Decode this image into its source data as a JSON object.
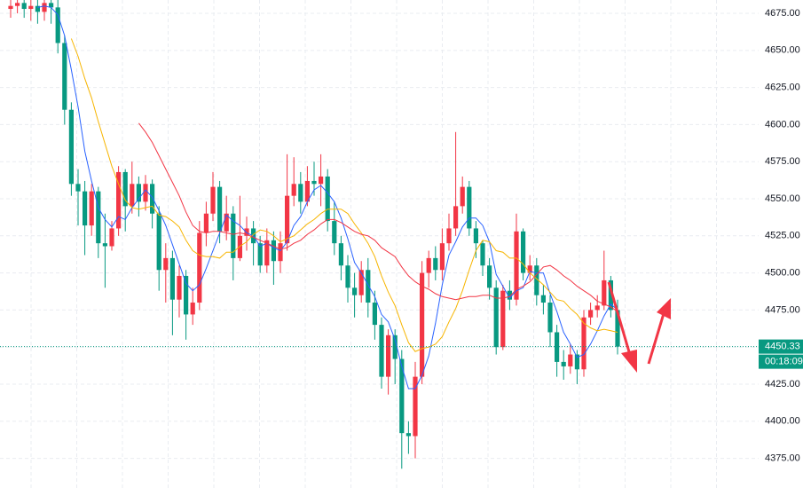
{
  "chart_data": {
    "type": "candlestick",
    "open": [
      4678,
      4680,
      4682,
      4678,
      4680,
      4676,
      4682,
      4679,
      4655,
      4610,
      4560,
      4555,
      4532,
      4555,
      4520,
      4518,
      4530,
      4568,
      4545,
      4560,
      4548,
      4560,
      4540,
      4502,
      4510,
      4482,
      4498,
      4472,
      4480,
      4527,
      4540,
      4558,
      4528,
      4540,
      4510,
      4525,
      4530,
      4520,
      4505,
      4522,
      4508,
      4520,
      4552,
      4560,
      4548,
      4562,
      4560,
      4565,
      4535,
      4520,
      4505,
      4490,
      4485,
      4502,
      4480,
      4465,
      4430,
      4458,
      4442,
      4392,
      4390,
      4430,
      4500,
      4510,
      4502,
      4520,
      4530,
      4545,
      4558,
      4530,
      4520,
      4505,
      4490,
      4450,
      4488,
      4482,
      4528,
      4500,
      4505,
      4485,
      4480,
      4460,
      4440,
      4437,
      4445,
      4435,
      4470,
      4475,
      4478,
      4495,
      4475
    ],
    "high": [
      4686,
      4688,
      4690,
      4686,
      4685,
      4688,
      4686,
      4684,
      4660,
      4615,
      4570,
      4562,
      4560,
      4558,
      4540,
      4535,
      4572,
      4570,
      4575,
      4565,
      4566,
      4563,
      4545,
      4520,
      4515,
      4505,
      4502,
      4490,
      4535,
      4548,
      4568,
      4562,
      4552,
      4545,
      4552,
      4538,
      4535,
      4525,
      4530,
      4528,
      4528,
      4580,
      4578,
      4568,
      4572,
      4575,
      4580,
      4570,
      4548,
      4525,
      4512,
      4500,
      4508,
      4510,
      4488,
      4470,
      4462,
      4462,
      4448,
      4400,
      4440,
      4508,
      4515,
      4518,
      4530,
      4540,
      4595,
      4565,
      4562,
      4535,
      4522,
      4510,
      4495,
      4492,
      4495,
      4540,
      4530,
      4512,
      4510,
      4492,
      4485,
      4465,
      4448,
      4452,
      4448,
      4475,
      4480,
      4485,
      4515,
      4498,
      4482
    ],
    "low": [
      4672,
      4675,
      4672,
      4670,
      4668,
      4670,
      4668,
      4648,
      4600,
      4552,
      4532,
      4512,
      4525,
      4510,
      4490,
      4515,
      4525,
      4528,
      4540,
      4538,
      4542,
      4530,
      4488,
      4480,
      4458,
      4470,
      4455,
      4465,
      4475,
      4518,
      4535,
      4520,
      4522,
      4495,
      4508,
      4515,
      4505,
      4500,
      4500,
      4492,
      4500,
      4515,
      4545,
      4540,
      4545,
      4552,
      4545,
      4528,
      4512,
      4495,
      4480,
      4470,
      4480,
      4470,
      4455,
      4422,
      4418,
      4425,
      4368,
      4378,
      4375,
      4425,
      4490,
      4495,
      4495,
      4515,
      4525,
      4540,
      4525,
      4510,
      4498,
      4482,
      4445,
      4448,
      4475,
      4478,
      4495,
      4495,
      4478,
      4472,
      4450,
      4430,
      4428,
      4432,
      4425,
      4430,
      4465,
      4470,
      4475,
      4470,
      4445
    ],
    "close": [
      4680,
      4682,
      4678,
      4680,
      4676,
      4682,
      4679,
      4655,
      4610,
      4560,
      4555,
      4532,
      4555,
      4520,
      4518,
      4530,
      4568,
      4545,
      4560,
      4548,
      4560,
      4540,
      4502,
      4510,
      4482,
      4498,
      4472,
      4480,
      4527,
      4540,
      4558,
      4528,
      4540,
      4510,
      4525,
      4530,
      4520,
      4505,
      4522,
      4508,
      4520,
      4552,
      4560,
      4548,
      4562,
      4560,
      4565,
      4535,
      4520,
      4505,
      4490,
      4485,
      4502,
      4480,
      4465,
      4430,
      4458,
      4442,
      4392,
      4390,
      4430,
      4500,
      4510,
      4502,
      4520,
      4530,
      4545,
      4558,
      4530,
      4520,
      4505,
      4490,
      4450,
      4488,
      4482,
      4528,
      4500,
      4505,
      4485,
      4480,
      4460,
      4440,
      4437,
      4445,
      4435,
      4470,
      4475,
      4478,
      4495,
      4475,
      4450.33
    ],
    "up_color": "#f23645",
    "down_color": "#089981",
    "moving_averages": [
      {
        "color": "#2962ff",
        "values": [
          null,
          null,
          null,
          null,
          4679,
          4680,
          4679,
          4674,
          4660,
          4637,
          4612,
          4582,
          4562,
          4544,
          4536,
          4531,
          4538,
          4536,
          4544,
          4550,
          4556,
          4551,
          4542,
          4532,
          4519,
          4506,
          4493,
          4488,
          4492,
          4503,
          4515,
          4527,
          4539,
          4535,
          4532,
          4527,
          4525,
          4518,
          4520,
          4517,
          4515,
          4521,
          4532,
          4538,
          4548,
          4556,
          4559,
          4554,
          4548,
          4537,
          4523,
          4507,
          4500,
          4492,
          4484,
          4472,
          4467,
          4455,
          4437,
          4422,
          4422,
          4431,
          4444,
          4466,
          4492,
          4512,
          4521,
          4531,
          4537,
          4537,
          4532,
          4521,
          4499,
          4491,
          4483,
          4488,
          4490,
          4501,
          4500,
          4500,
          4486,
          4474,
          4460,
          4452,
          4443,
          4445,
          4452,
          4461,
          4471,
          4479,
          4475
        ]
      },
      {
        "color": "#f7b500",
        "values": [
          null,
          null,
          null,
          null,
          null,
          null,
          null,
          null,
          null,
          4658,
          4646,
          4631,
          4618,
          4602,
          4587,
          4572,
          4560,
          4549,
          4544,
          4543,
          4544,
          4545,
          4539,
          4538,
          4535,
          4531,
          4522,
          4515,
          4512,
          4511,
          4511,
          4510,
          4514,
          4514,
          4518,
          4521,
          4526,
          4529,
          4528,
          4525,
          4521,
          4523,
          4525,
          4529,
          4533,
          4536,
          4540,
          4543,
          4543,
          4543,
          4540,
          4533,
          4527,
          4520,
          4511,
          4498,
          4487,
          4478,
          4465,
          4453,
          4447,
          4449,
          4450,
          4452,
          4457,
          4467,
          4476,
          4488,
          4502,
          4515,
          4522,
          4521,
          4515,
          4514,
          4510,
          4510,
          4506,
          4500,
          4496,
          4492,
          4487,
          4482,
          4481,
          4476,
          4472,
          4466,
          4463,
          4461,
          4462,
          4461,
          4460
        ]
      },
      {
        "color": "#f23645",
        "values": [
          null,
          null,
          null,
          null,
          null,
          null,
          null,
          null,
          null,
          null,
          null,
          null,
          null,
          null,
          null,
          null,
          null,
          null,
          null,
          4601,
          4595,
          4588,
          4579,
          4570,
          4561,
          4552,
          4541,
          4532,
          4528,
          4527,
          4528,
          4528,
          4527,
          4526,
          4527,
          4526,
          4524,
          4522,
          4520,
          4518,
          4516,
          4517,
          4520,
          4522,
          4526,
          4529,
          4533,
          4536,
          4536,
          4534,
          4531,
          4528,
          4526,
          4525,
          4522,
          4517,
          4514,
          4511,
          4504,
          4498,
          4494,
          4491,
          4489,
          4486,
          4484,
          4483,
          4482,
          4483,
          4484,
          4484,
          4485,
          4485,
          4483,
          4483,
          4484,
          4489,
          4491,
          4494,
          4499,
          4504,
          4505,
          4502,
          4498,
          4495,
          4491,
          4488,
          4485,
          4481,
          4479,
          4477,
          4474
        ]
      }
    ],
    "ylim": [
      4355,
      4684
    ],
    "yticks": [
      {
        "value": 4375,
        "label": "4375.00"
      },
      {
        "value": 4400,
        "label": "4400.00"
      },
      {
        "value": 4425,
        "label": "4425.00"
      },
      {
        "value": 4450,
        "label": "4450.00"
      },
      {
        "value": 4475,
        "label": "4475.00"
      },
      {
        "value": 4500,
        "label": "4500.00"
      },
      {
        "value": 4525,
        "label": "4525.00"
      },
      {
        "value": 4550,
        "label": "4550.00"
      },
      {
        "value": 4575,
        "label": "4575.00"
      },
      {
        "value": 4600,
        "label": "4600.00"
      },
      {
        "value": 4625,
        "label": "4625.00"
      },
      {
        "value": 4650,
        "label": "4650.00"
      },
      {
        "value": 4675,
        "label": "4675.00"
      }
    ],
    "grid": true,
    "last_price": 4450.33,
    "countdown": "00:18:09"
  }
}
